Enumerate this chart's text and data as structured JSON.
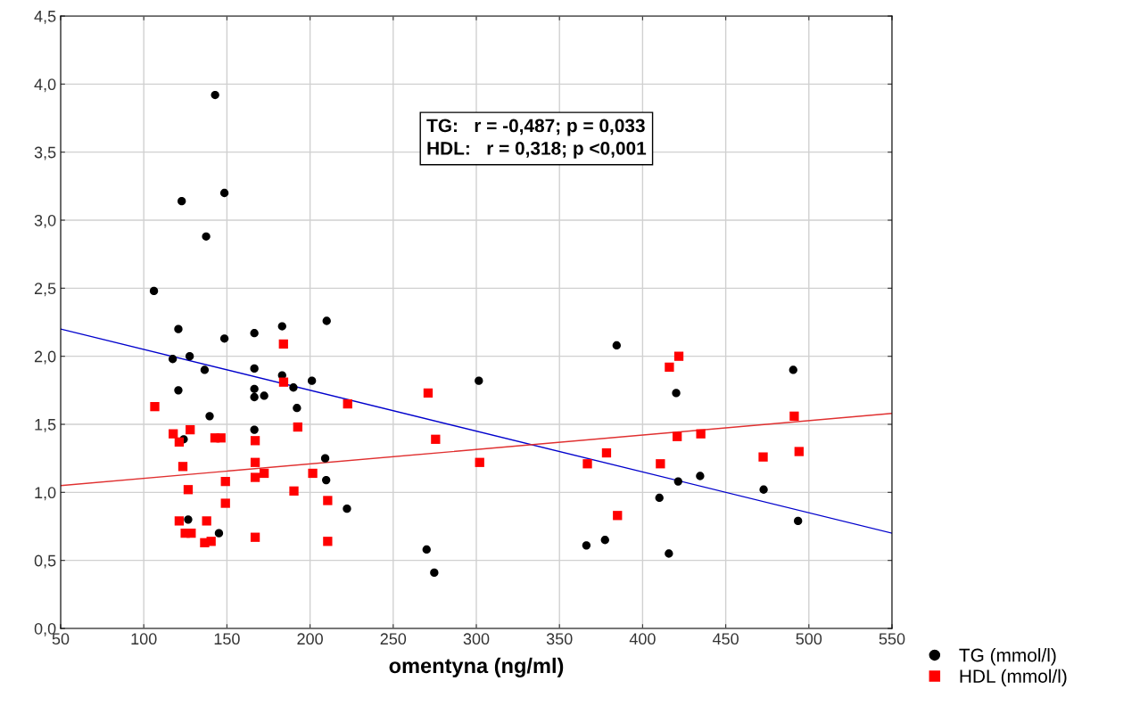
{
  "chart_data": {
    "type": "scatter",
    "xlabel": "omentyna (ng/ml)",
    "xlim": [
      50,
      550
    ],
    "xticks": [
      50,
      100,
      150,
      200,
      250,
      300,
      350,
      400,
      450,
      500,
      550
    ],
    "ylim": [
      0,
      4.5
    ],
    "yticks": [
      {
        "value": 0,
        "label": "0,0"
      },
      {
        "value": 0.5,
        "label": "0,5"
      },
      {
        "value": 1,
        "label": "1,0"
      },
      {
        "value": 1.5,
        "label": "1,5"
      },
      {
        "value": 2,
        "label": "2,0"
      },
      {
        "value": 2.5,
        "label": "2,5"
      },
      {
        "value": 3,
        "label": "3,0"
      },
      {
        "value": 3.5,
        "label": "3,5"
      },
      {
        "value": 4,
        "label": "4,0"
      },
      {
        "value": 4.5,
        "label": "4,5"
      }
    ],
    "grid": true,
    "legend": "bottom right",
    "annotations": [
      "TG:   r = -0,487; p = 0,033",
      "HDL:   r = 0,318; p <0,001"
    ],
    "series": [
      {
        "name": "TG (mmol/l)",
        "color": "#000000",
        "marker": "circle",
        "x": [
          142.9,
          148.5,
          122.8,
          137.5,
          106.1,
          120.8,
          148.5,
          166.5,
          183.2,
          210.0,
          117.4,
          127.6,
          136.6,
          166.5,
          183.2,
          201.1,
          190.0,
          120.8,
          166.5,
          166.5,
          172.4,
          192.1,
          139.6,
          166.5,
          124.0,
          209.1,
          209.7,
          222.2,
          126.7,
          145.2,
          384.4,
          490.6,
          301.5,
          420.2,
          421.4,
          434.6,
          472.8,
          410.1,
          493.5,
          377.4,
          366.2,
          415.8,
          270.1,
          274.7
        ],
        "values": [
          3.92,
          3.2,
          3.14,
          2.88,
          2.48,
          2.2,
          2.13,
          2.17,
          2.22,
          2.26,
          1.98,
          2.0,
          1.9,
          1.91,
          1.86,
          1.82,
          1.77,
          1.75,
          1.76,
          1.7,
          1.71,
          1.62,
          1.56,
          1.46,
          1.39,
          1.25,
          1.09,
          0.88,
          0.8,
          0.7,
          2.08,
          1.9,
          1.82,
          1.73,
          1.08,
          1.12,
          1.02,
          0.96,
          0.79,
          0.65,
          0.61,
          0.55,
          0.58,
          0.41
        ]
      },
      {
        "name": "HDL (mmol/l)",
        "color": "#ff0000",
        "marker": "square",
        "x": [
          184.0,
          184.1,
          106.6,
          222.6,
          192.6,
          117.7,
          127.9,
          121.3,
          142.8,
          146.4,
          167.0,
          123.5,
          167.0,
          167.0,
          172.4,
          201.6,
          149.1,
          126.7,
          190.3,
          209.7,
          210.6,
          149.1,
          121.3,
          137.8,
          124.9,
          128.5,
          136.6,
          140.5,
          167.0,
          210.6,
          421.8,
          416.1,
          271.0,
          491.2,
          420.8,
          435.0,
          275.5,
          378.3,
          472.5,
          494.1,
          302.0,
          366.8,
          410.7,
          384.9
        ],
        "values": [
          2.09,
          1.81,
          1.63,
          1.65,
          1.48,
          1.43,
          1.46,
          1.37,
          1.4,
          1.4,
          1.38,
          1.19,
          1.22,
          1.11,
          1.14,
          1.14,
          1.08,
          1.02,
          1.01,
          null,
          0.94,
          0.92,
          0.79,
          0.79,
          0.7,
          0.7,
          0.63,
          0.64,
          0.67,
          0.64,
          2.0,
          1.92,
          1.73,
          1.56,
          1.41,
          1.43,
          1.39,
          1.29,
          1.26,
          1.3,
          1.22,
          1.21,
          1.21,
          0.83
        ]
      },
      {
        "type": "line",
        "color": "#0000cc",
        "x": [
          50,
          550
        ],
        "values": [
          2.2,
          0.7
        ]
      },
      {
        "type": "line",
        "color": "#e03030",
        "x": [
          50,
          550
        ],
        "values": [
          1.05,
          1.58
        ]
      }
    ]
  }
}
